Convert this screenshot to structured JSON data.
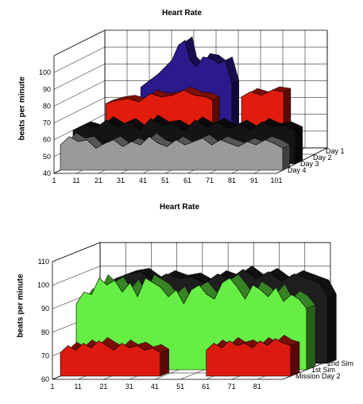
{
  "chart_data": [
    {
      "type": "area",
      "style": "3d-stacked-ribbons",
      "title": "Heart Rate",
      "xlabel": "",
      "ylabel": "beats per minute",
      "ylim": [
        40,
        110
      ],
      "yticks": [
        "40",
        "50",
        "60",
        "70",
        "80",
        "90",
        "100"
      ],
      "xticks": [
        "1",
        "11",
        "21",
        "31",
        "41",
        "51",
        "61",
        "71",
        "81",
        "91",
        "101"
      ],
      "xrange": [
        1,
        101
      ],
      "grid": true,
      "series_label_position": "right",
      "series": [
        {
          "name": "Day 1",
          "color": "#2a1a8c",
          "segments": [
            {
              "x": [
                20,
                28,
                34,
                37,
                40,
                42,
                45,
                48,
                52,
                55,
                58,
                61
              ],
              "y": [
                78,
                86,
                94,
                103,
                106,
                94,
                90,
                96,
                95,
                92,
                94,
                80
              ]
            }
          ]
        },
        {
          "name": "Day 2",
          "color": "#e21c0c",
          "segments": [
            {
              "x": [
                10,
                15,
                20,
                25,
                30,
                35,
                40,
                45,
                50,
                55,
                58
              ],
              "y": [
                72,
                74,
                75,
                73,
                78,
                76,
                77,
                80,
                77,
                76,
                74
              ]
            },
            {
              "x": [
                71,
                75,
                80,
                85,
                90
              ],
              "y": [
                76,
                79,
                77,
                80,
                79
              ]
            }
          ]
        },
        {
          "name": "Day 3",
          "color": "#141414",
          "segments": [
            {
              "x": [
                1,
                6,
                11,
                16,
                21,
                26,
                31,
                36,
                41,
                46,
                51,
                56,
                61,
                66,
                71,
                76,
                81,
                86,
                91,
                96,
                101
              ],
              "y": [
                60,
                63,
                61,
                66,
                62,
                65,
                60,
                67,
                63,
                64,
                60,
                66,
                62,
                65,
                61,
                64,
                60,
                65,
                62,
                63,
                60
              ]
            }
          ]
        },
        {
          "name": "Day 4",
          "color": "#9a9a9a",
          "segments": [
            {
              "x": [
                1,
                5,
                9,
                13,
                17,
                21,
                25,
                29,
                33,
                37,
                41,
                45,
                49,
                53,
                57,
                61,
                65,
                69,
                73,
                77,
                81,
                85,
                89,
                93,
                97,
                101
              ],
              "y": [
                55,
                60,
                57,
                58,
                53,
                56,
                58,
                54,
                57,
                55,
                60,
                56,
                54,
                58,
                55,
                57,
                59,
                55,
                58,
                56,
                54,
                57,
                55,
                58,
                56,
                53
              ]
            }
          ]
        }
      ]
    },
    {
      "type": "area",
      "style": "3d-stacked-ribbons",
      "title": "Heart Rate",
      "xlabel": "",
      "ylabel": "beats per minute",
      "ylim": [
        60,
        110
      ],
      "yticks": [
        "60",
        "70",
        "80",
        "90",
        "100",
        "110"
      ],
      "xticks": [
        "1",
        "11",
        "21",
        "31",
        "41",
        "51",
        "61",
        "71",
        "81"
      ],
      "xrange": [
        1,
        91
      ],
      "grid": true,
      "series_label_position": "right",
      "series": [
        {
          "name": "2nd Sim",
          "color": "#1e1e1e",
          "segments": [
            {
              "x": [
                5,
                10,
                15,
                20,
                25,
                30,
                35,
                40,
                45,
                50,
                55,
                60,
                65,
                70,
                75,
                80,
                85,
                90,
                93
              ],
              "y": [
                90,
                96,
                98,
                99,
                95,
                98,
                96,
                97,
                94,
                98,
                96,
                100,
                96,
                99,
                95,
                98,
                96,
                94,
                88
              ]
            }
          ]
        },
        {
          "name": "1st Sim",
          "color": "#66ee44",
          "segments": [
            {
              "x": [
                1,
                4,
                7,
                10,
                13,
                16,
                19,
                22,
                25,
                28,
                31,
                34,
                37,
                40,
                43,
                46,
                49,
                52,
                55,
                58,
                61,
                64,
                67,
                70,
                73,
                76,
                79,
                82,
                85,
                88,
                91
              ],
              "y": [
                88,
                93,
                92,
                99,
                96,
                98,
                93,
                97,
                91,
                99,
                97,
                95,
                91,
                94,
                88,
                94,
                96,
                92,
                90,
                97,
                99,
                95,
                90,
                96,
                94,
                91,
                95,
                89,
                92,
                90,
                86
              ]
            }
          ]
        },
        {
          "name": "Mission Day 2",
          "color": "#dd1a10",
          "segments": [
            {
              "x": [
                1,
                4,
                7,
                10,
                13,
                16,
                19,
                22,
                25,
                28,
                31,
                34,
                37,
                40
              ],
              "y": [
                70,
                73,
                71,
                74,
                72,
                75,
                73,
                71,
                74,
                72,
                73,
                71,
                72,
                70
              ]
            },
            {
              "x": [
                58,
                61,
                64,
                67,
                70,
                73,
                76,
                79,
                82,
                85,
                88,
                91
              ],
              "y": [
                71,
                74,
                72,
                75,
                73,
                74,
                72,
                75,
                73,
                76,
                74,
                73
              ]
            }
          ]
        }
      ]
    }
  ]
}
